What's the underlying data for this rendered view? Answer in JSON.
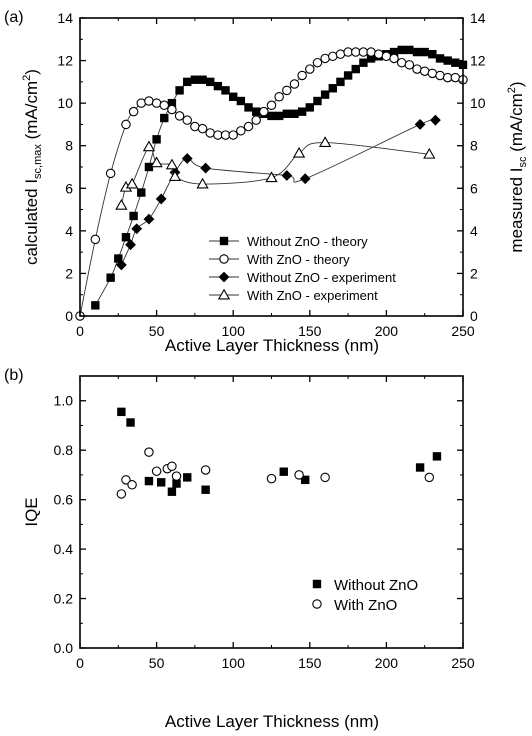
{
  "chart_data": [
    {
      "panel_label": "(a)",
      "type": "line",
      "xlabel": "Active Layer Thickness (nm)",
      "xlim": [
        0,
        250
      ],
      "xticks": [
        "0",
        "50",
        "100",
        "150",
        "200",
        "250"
      ],
      "ylabel_left": "calculated I",
      "ylabel_left_sub": "sc,max",
      "ylabel_left_unit": " (mA/cm",
      "ylabel_left_sup": "2",
      "ylabel_left_close": ")",
      "ylabel_right": "measured I",
      "ylabel_right_sub": "sc",
      "ylabel_right_unit": " (mA/cm",
      "ylabel_right_sup": "2",
      "ylabel_right_close": ")",
      "ylim": [
        0,
        14
      ],
      "yticks": [
        "0",
        "2",
        "4",
        "6",
        "8",
        "10",
        "12",
        "14"
      ],
      "legend_position": "lower-right",
      "series": [
        {
          "name": "Without ZnO - theory",
          "marker": "square-filled",
          "x": [
            10,
            20,
            25,
            30,
            35,
            40,
            45,
            50,
            55,
            60,
            65,
            70,
            75,
            80,
            85,
            90,
            95,
            100,
            105,
            110,
            115,
            120,
            125,
            130,
            135,
            140,
            145,
            150,
            155,
            160,
            165,
            170,
            175,
            180,
            185,
            190,
            195,
            200,
            205,
            210,
            215,
            220,
            225,
            230,
            235,
            240,
            245,
            250
          ],
          "y": [
            0.5,
            1.8,
            2.7,
            3.7,
            4.7,
            5.8,
            7.0,
            8.3,
            9.3,
            10.0,
            10.6,
            11.0,
            11.1,
            11.1,
            11.0,
            10.8,
            10.6,
            10.3,
            10.1,
            9.8,
            9.6,
            9.5,
            9.4,
            9.4,
            9.5,
            9.5,
            9.6,
            9.8,
            10.1,
            10.4,
            10.7,
            11.0,
            11.3,
            11.6,
            11.9,
            12.1,
            12.2,
            12.3,
            12.4,
            12.5,
            12.5,
            12.4,
            12.4,
            12.3,
            12.1,
            12.0,
            11.9,
            11.8
          ]
        },
        {
          "name": "With ZnO - theory",
          "marker": "circle-open",
          "x": [
            0,
            10,
            20,
            30,
            35,
            40,
            45,
            50,
            55,
            60,
            65,
            70,
            75,
            80,
            85,
            90,
            95,
            100,
            105,
            110,
            115,
            120,
            125,
            130,
            135,
            140,
            145,
            150,
            155,
            160,
            165,
            170,
            175,
            180,
            185,
            190,
            195,
            200,
            205,
            210,
            215,
            220,
            225,
            230,
            235,
            240,
            245,
            250
          ],
          "y": [
            0,
            3.6,
            6.7,
            9.0,
            9.6,
            10.0,
            10.1,
            10.0,
            9.9,
            9.7,
            9.4,
            9.2,
            8.9,
            8.8,
            8.6,
            8.5,
            8.5,
            8.5,
            8.7,
            8.9,
            9.2,
            9.6,
            9.9,
            10.3,
            10.6,
            10.9,
            11.3,
            11.6,
            11.9,
            12.1,
            12.2,
            12.3,
            12.4,
            12.4,
            12.4,
            12.4,
            12.3,
            12.2,
            12.1,
            11.9,
            11.8,
            11.6,
            11.5,
            11.4,
            11.3,
            11.2,
            11.2,
            11.1
          ]
        },
        {
          "name": "Without ZnO - experiment",
          "marker": "diamond-filled",
          "x": [
            27,
            33,
            37,
            45,
            53,
            62,
            70,
            82,
            135,
            147,
            222,
            232
          ],
          "y": [
            2.4,
            3.35,
            4.1,
            4.55,
            5.5,
            6.75,
            7.4,
            6.95,
            6.6,
            6.45,
            9.0,
            9.2
          ]
        },
        {
          "name": "With ZnO - experiment",
          "marker": "triangle-open",
          "x": [
            27,
            30,
            34,
            45,
            50,
            60,
            62,
            80,
            125,
            143,
            160,
            228
          ],
          "y": [
            5.2,
            6.05,
            6.2,
            7.95,
            7.2,
            7.1,
            6.55,
            6.2,
            6.5,
            7.65,
            8.15,
            7.6
          ]
        }
      ]
    },
    {
      "panel_label": "(b)",
      "type": "scatter",
      "xlabel": "Active Layer Thickness  (nm)",
      "xlim": [
        0,
        250
      ],
      "xticks": [
        "0",
        "50",
        "100",
        "150",
        "200",
        "250"
      ],
      "ylabel": "IQE",
      "ylim": [
        0.0,
        1.1
      ],
      "yticks": [
        "0.0",
        "0.2",
        "0.4",
        "0.6",
        "0.8",
        "1.0"
      ],
      "legend_position": "lower-right",
      "series": [
        {
          "name": "Without ZnO",
          "marker": "square-filled",
          "x": [
            27,
            33,
            45,
            53,
            60,
            63,
            70,
            82,
            133,
            147,
            222,
            233
          ],
          "y": [
            0.955,
            0.912,
            0.675,
            0.67,
            0.632,
            0.665,
            0.69,
            0.64,
            0.713,
            0.68,
            0.73,
            0.775
          ]
        },
        {
          "name": "With ZnO",
          "marker": "circle-open",
          "x": [
            27,
            30,
            34,
            45,
            50,
            57,
            60,
            63,
            82,
            125,
            143,
            160,
            228
          ],
          "y": [
            0.623,
            0.68,
            0.66,
            0.792,
            0.715,
            0.725,
            0.735,
            0.695,
            0.72,
            0.685,
            0.7,
            0.69,
            0.69
          ]
        }
      ]
    }
  ]
}
